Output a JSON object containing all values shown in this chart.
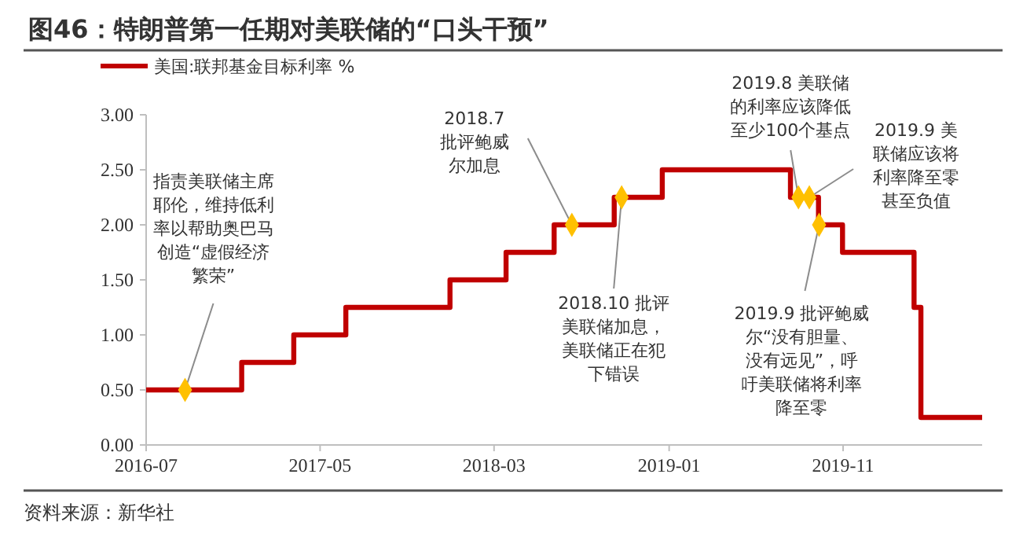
{
  "chart_data": {
    "type": "step",
    "title": "图46：特朗普第一任期对美联储的“口头干预”",
    "xlim": [
      "2016-07-01",
      "2020-07-01"
    ],
    "xticks": [
      "2016-07",
      "2017-05",
      "2018-03",
      "2019-01",
      "2019-11"
    ],
    "ylim": [
      0,
      3
    ],
    "yticks": [
      {
        "value": 0,
        "label": "0.00"
      },
      {
        "value": 0.5,
        "label": "0.50"
      },
      {
        "value": 1,
        "label": "1.00"
      },
      {
        "value": 1.5,
        "label": "1.50"
      },
      {
        "value": 2,
        "label": "2.00"
      },
      {
        "value": 2.5,
        "label": "2.50"
      },
      {
        "value": 3,
        "label": "3.00"
      }
    ],
    "grid": false,
    "legend": "top left",
    "line_style": "solid",
    "series": [
      {
        "name": "美国:联邦基金目标利率 %",
        "color": "#c00000",
        "marker": "none",
        "x": [
          "2016-07-01",
          "2016-12-15",
          "2017-03-16",
          "2017-06-15",
          "2017-12-14",
          "2018-03-22",
          "2018-06-14",
          "2018-09-27",
          "2018-12-20",
          "2019-08-01",
          "2019-09-19",
          "2019-10-31",
          "2020-03-04",
          "2020-03-16",
          "2020-07-01"
        ],
        "values": [
          0.5,
          0.75,
          1,
          1.25,
          1.5,
          1.75,
          2,
          2.25,
          2.5,
          2.25,
          2,
          1.75,
          1.25,
          0.25,
          0.25
        ]
      },
      {
        "type": "scatter",
        "color": "#ffc000",
        "marker": "diamond",
        "x": [
          "2016-09-07",
          "2018-07-15",
          "2018-10-10",
          "2019-08-15",
          "2019-09-03",
          "2019-09-20"
        ],
        "values": [
          0.5,
          2,
          2.25,
          2.25,
          2.25,
          2
        ]
      }
    ],
    "annotations": [
      {
        "text": "指责美联储主席耶伦，维持低利率以帮助奥巴马创造“虚假经济繁荣”",
        "x": "2016-09-07",
        "y": 0.5
      },
      {
        "text": "2018.7批评鲍威尔加息",
        "x": "2018-07-15",
        "y": 2
      },
      {
        "text": "2018.10 批评美联储加息，美联储正在犯下错误",
        "x": "2018-10-10",
        "y": 2.25
      },
      {
        "text": "2019.8 美联储的利率应该降低至少100个基点",
        "x": "2019-08-15",
        "y": 2.25
      },
      {
        "text": "2019.9 美联储应该将利率降至零甚至负值",
        "x": "2019-09-03",
        "y": 2.25
      },
      {
        "text": "2019.9 批评鲍威尔“没有胆量、没有远见”，呼吁美联储将利率降至零",
        "x": "2019-09-20",
        "y": 2
      },
      "资料来源：新华社"
    ]
  }
}
